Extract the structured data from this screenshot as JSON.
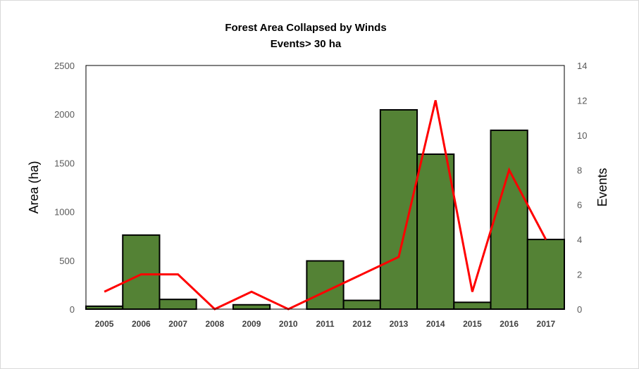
{
  "chart_data": {
    "type": "bar+line",
    "title": "Forest Area Collapsed by Winds",
    "subtitle": "Events> 30 ha",
    "categories": [
      "2005",
      "2006",
      "2007",
      "2008",
      "2009",
      "2010",
      "2011",
      "2012",
      "2013",
      "2014",
      "2015",
      "2016",
      "2017"
    ],
    "bar_series": {
      "axis": "left",
      "values": [
        30,
        760,
        100,
        0,
        45,
        0,
        495,
        90,
        2045,
        1590,
        70,
        1835,
        715
      ],
      "color": "#548235"
    },
    "line_series": {
      "axis": "right",
      "values": [
        1,
        2,
        2,
        0,
        1,
        0,
        1,
        2,
        3,
        12,
        1,
        8,
        4
      ],
      "color": "#ff0000"
    },
    "ylabel_left": "Area (ha)",
    "ylabel_right": "Events",
    "ylim_left": [
      0,
      2500
    ],
    "yticks_left": [
      "0",
      "500",
      "1000",
      "1500",
      "2000",
      "2500"
    ],
    "ylim_right": [
      0,
      14
    ],
    "yticks_right": [
      "0",
      "2",
      "4",
      "6",
      "8",
      "10",
      "12",
      "14"
    ],
    "grid": false,
    "legend": "none"
  }
}
